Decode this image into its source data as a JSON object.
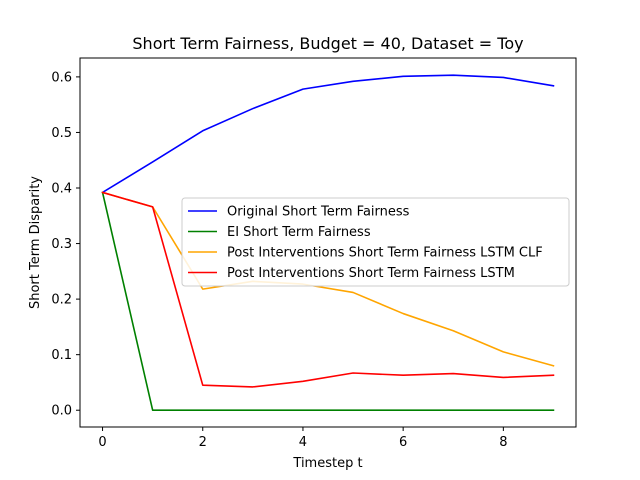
{
  "chart_data": {
    "type": "line",
    "title": "Short Term Fairness, Budget = 40, Dataset = Toy",
    "xlabel": "Timestep t",
    "ylabel": "Short Term Disparity",
    "xlim": [
      -0.45,
      9.45
    ],
    "ylim": [
      -0.0302,
      0.634
    ],
    "xticks": [
      0,
      2,
      4,
      6,
      8
    ],
    "xtick_labels": [
      "0",
      "2",
      "4",
      "6",
      "8"
    ],
    "yticks": [
      0.0,
      0.1,
      0.2,
      0.3,
      0.4,
      0.5,
      0.6
    ],
    "ytick_labels": [
      "0.0",
      "0.1",
      "0.2",
      "0.3",
      "0.4",
      "0.5",
      "0.6"
    ],
    "grid": false,
    "legend_position": "center-right",
    "x": [
      0,
      1,
      2,
      3,
      4,
      5,
      6,
      7,
      8,
      9
    ],
    "series": [
      {
        "name": "Original Short Term Fairness",
        "color": "#0000ff",
        "values": [
          0.392,
          0.447,
          0.503,
          0.543,
          0.578,
          0.592,
          0.601,
          0.603,
          0.599,
          0.584
        ]
      },
      {
        "name": "EI Short Term Fairness",
        "color": "#008000",
        "values": [
          0.392,
          0.0,
          0.0,
          0.0,
          0.0,
          0.0,
          0.0,
          0.0,
          0.0,
          0.0
        ]
      },
      {
        "name": "Post Interventions Short Term Fairness LSTM CLF",
        "color": "#ffa500",
        "values": [
          0.392,
          0.366,
          0.218,
          0.232,
          0.227,
          0.212,
          0.174,
          0.143,
          0.105,
          0.08
        ]
      },
      {
        "name": "Post Interventions Short Term Fairness LSTM",
        "color": "#ff0000",
        "values": [
          0.392,
          0.366,
          0.045,
          0.042,
          0.052,
          0.067,
          0.063,
          0.066,
          0.059,
          0.063
        ]
      }
    ]
  }
}
